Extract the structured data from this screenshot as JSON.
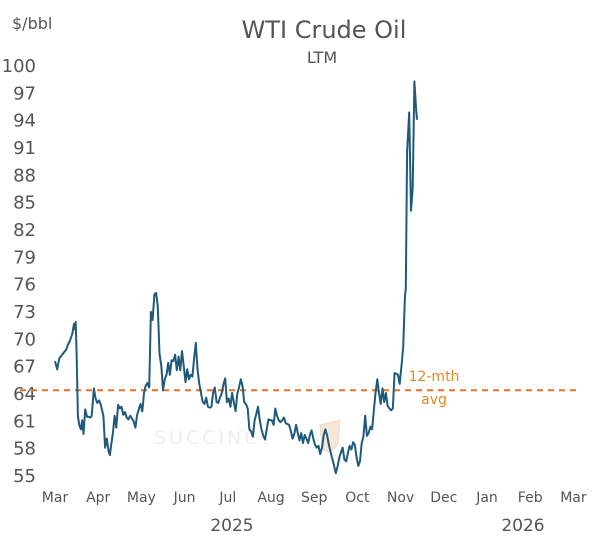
{
  "chart_data": {
    "type": "line",
    "title": "WTI Crude Oil",
    "subtitle": "LTM",
    "ylabel": "$/bbl",
    "ylim": [
      55,
      100
    ],
    "y_ticks": [
      55,
      58,
      61,
      64,
      67,
      70,
      73,
      76,
      79,
      82,
      85,
      88,
      91,
      94,
      97,
      100
    ],
    "x_ticks": [
      "Mar",
      "Apr",
      "May",
      "Jun",
      "Jul",
      "Aug",
      "Sep",
      "Oct",
      "Nov",
      "Dec",
      "Jan",
      "Feb",
      "Mar"
    ],
    "years": [
      "2025",
      "2026"
    ],
    "line_color": "#1f5a7a",
    "grid": false,
    "average": {
      "value": 64.3,
      "label": [
        "12-mth",
        "avg"
      ],
      "color": "#e5702a",
      "label_color": "#e08a1e"
    },
    "watermark": "SUCCINCT",
    "series": [
      {
        "points": [
          [
            0.0,
            67.5
          ],
          [
            0.05,
            66.6
          ],
          [
            0.1,
            67.8
          ],
          [
            0.18,
            68.3
          ],
          [
            0.25,
            68.7
          ],
          [
            0.3,
            69.3
          ],
          [
            0.35,
            69.8
          ],
          [
            0.4,
            70.5
          ],
          [
            0.44,
            71.6
          ],
          [
            0.46,
            71.0
          ],
          [
            0.48,
            71.8
          ],
          [
            0.5,
            68.3
          ],
          [
            0.53,
            61.5
          ],
          [
            0.56,
            60.5
          ],
          [
            0.6,
            60.0
          ],
          [
            0.63,
            61.0
          ],
          [
            0.66,
            59.5
          ],
          [
            0.7,
            62.2
          ],
          [
            0.74,
            61.4
          ],
          [
            0.78,
            61.4
          ],
          [
            0.82,
            61.3
          ],
          [
            0.85,
            61.5
          ],
          [
            0.9,
            64.5
          ],
          [
            0.94,
            63.4
          ],
          [
            0.98,
            62.9
          ],
          [
            1.02,
            63.2
          ],
          [
            1.06,
            62.7
          ],
          [
            1.12,
            61.5
          ],
          [
            1.16,
            58.0
          ],
          [
            1.2,
            59.0
          ],
          [
            1.24,
            57.6
          ],
          [
            1.27,
            57.2
          ],
          [
            1.3,
            58.3
          ],
          [
            1.34,
            59.6
          ],
          [
            1.38,
            61.5
          ],
          [
            1.42,
            60.2
          ],
          [
            1.46,
            62.7
          ],
          [
            1.5,
            62.3
          ],
          [
            1.54,
            62.5
          ],
          [
            1.58,
            61.6
          ],
          [
            1.62,
            61.9
          ],
          [
            1.66,
            61.3
          ],
          [
            1.7,
            61.1
          ],
          [
            1.74,
            61.5
          ],
          [
            1.78,
            61.2
          ],
          [
            1.82,
            60.9
          ],
          [
            1.86,
            60.2
          ],
          [
            1.9,
            61.6
          ],
          [
            1.94,
            62.2
          ],
          [
            1.98,
            62.8
          ],
          [
            2.02,
            62.0
          ],
          [
            2.06,
            64.0
          ],
          [
            2.1,
            64.8
          ],
          [
            2.14,
            65.1
          ],
          [
            2.18,
            64.6
          ],
          [
            2.22,
            72.9
          ],
          [
            2.26,
            72.0
          ],
          [
            2.3,
            74.8
          ],
          [
            2.34,
            75.0
          ],
          [
            2.38,
            73.5
          ],
          [
            2.42,
            68.3
          ],
          [
            2.46,
            67.0
          ],
          [
            2.5,
            64.3
          ],
          [
            2.54,
            65.5
          ],
          [
            2.58,
            66.0
          ],
          [
            2.62,
            67.3
          ],
          [
            2.66,
            66.0
          ],
          [
            2.7,
            67.6
          ],
          [
            2.74,
            67.5
          ],
          [
            2.78,
            68.2
          ],
          [
            2.82,
            66.5
          ],
          [
            2.86,
            68.0
          ],
          [
            2.9,
            66.5
          ],
          [
            2.94,
            68.6
          ],
          [
            2.98,
            67.0
          ],
          [
            3.02,
            65.2
          ],
          [
            3.06,
            66.6
          ],
          [
            3.1,
            65.5
          ],
          [
            3.14,
            66.0
          ],
          [
            3.18,
            65.8
          ],
          [
            3.22,
            67.8
          ],
          [
            3.26,
            69.5
          ],
          [
            3.3,
            66.5
          ],
          [
            3.34,
            65.0
          ],
          [
            3.38,
            64.0
          ],
          [
            3.42,
            63.0
          ],
          [
            3.46,
            62.8
          ],
          [
            3.5,
            63.5
          ],
          [
            3.54,
            62.5
          ],
          [
            3.58,
            62.4
          ],
          [
            3.62,
            62.5
          ],
          [
            3.66,
            64.0
          ],
          [
            3.7,
            64.6
          ],
          [
            3.74,
            63.0
          ],
          [
            3.78,
            62.9
          ],
          [
            3.82,
            63.5
          ],
          [
            3.86,
            64.0
          ],
          [
            3.9,
            65.0
          ],
          [
            3.94,
            65.6
          ],
          [
            3.98,
            63.0
          ],
          [
            4.02,
            63.4
          ],
          [
            4.06,
            62.5
          ],
          [
            4.1,
            64.0
          ],
          [
            4.14,
            63.0
          ],
          [
            4.18,
            62.0
          ],
          [
            4.22,
            63.9
          ],
          [
            4.26,
            64.6
          ],
          [
            4.3,
            65.5
          ],
          [
            4.34,
            64.8
          ],
          [
            4.38,
            63.0
          ],
          [
            4.42,
            62.8
          ],
          [
            4.46,
            62.3
          ],
          [
            4.5,
            60.0
          ],
          [
            4.54,
            59.8
          ],
          [
            4.58,
            59.2
          ],
          [
            4.62,
            61.0
          ],
          [
            4.66,
            61.7
          ],
          [
            4.7,
            62.5
          ],
          [
            4.74,
            61.0
          ],
          [
            4.78,
            60.0
          ],
          [
            4.82,
            59.3
          ],
          [
            4.86,
            58.9
          ],
          [
            4.9,
            60.0
          ],
          [
            4.94,
            61.1
          ],
          [
            4.98,
            61.0
          ],
          [
            5.02,
            61.0
          ],
          [
            5.06,
            60.5
          ],
          [
            5.1,
            62.3
          ],
          [
            5.14,
            61.5
          ],
          [
            5.18,
            61.0
          ],
          [
            5.22,
            60.8
          ],
          [
            5.26,
            61.0
          ],
          [
            5.3,
            61.3
          ],
          [
            5.34,
            60.7
          ],
          [
            5.38,
            60.6
          ],
          [
            5.42,
            60.5
          ],
          [
            5.46,
            59.8
          ],
          [
            5.5,
            59.0
          ],
          [
            5.54,
            59.5
          ],
          [
            5.58,
            60.5
          ],
          [
            5.62,
            59.6
          ],
          [
            5.66,
            58.8
          ],
          [
            5.7,
            59.6
          ],
          [
            5.74,
            58.5
          ],
          [
            5.78,
            59.4
          ],
          [
            5.82,
            59.0
          ],
          [
            5.86,
            58.5
          ],
          [
            5.9,
            59.4
          ],
          [
            5.94,
            59.9
          ],
          [
            5.98,
            59.0
          ],
          [
            6.02,
            58.3
          ],
          [
            6.06,
            58.0
          ],
          [
            6.1,
            58.2
          ],
          [
            6.14,
            57.3
          ],
          [
            6.18,
            58.0
          ],
          [
            6.22,
            59.4
          ],
          [
            6.26,
            60.0
          ],
          [
            6.3,
            59.3
          ],
          [
            6.34,
            58.3
          ],
          [
            6.38,
            57.5
          ],
          [
            6.42,
            56.8
          ],
          [
            6.46,
            56.0
          ],
          [
            6.5,
            55.2
          ],
          [
            6.54,
            55.9
          ],
          [
            6.58,
            56.9
          ],
          [
            6.62,
            57.5
          ],
          [
            6.66,
            58.0
          ],
          [
            6.7,
            56.7
          ],
          [
            6.74,
            56.5
          ],
          [
            6.78,
            57.4
          ],
          [
            6.82,
            58.2
          ],
          [
            6.86,
            57.8
          ],
          [
            6.9,
            58.6
          ],
          [
            6.94,
            58.3
          ],
          [
            6.98,
            57.0
          ],
          [
            7.02,
            56.0
          ],
          [
            7.06,
            56.5
          ],
          [
            7.1,
            58.5
          ],
          [
            7.14,
            59.2
          ],
          [
            7.18,
            61.5
          ],
          [
            7.22,
            59.3
          ],
          [
            7.26,
            59.6
          ],
          [
            7.3,
            60.3
          ],
          [
            7.34,
            60.0
          ],
          [
            7.38,
            62.0
          ],
          [
            7.42,
            64.0
          ],
          [
            7.46,
            65.5
          ],
          [
            7.5,
            64.0
          ],
          [
            7.54,
            62.8
          ],
          [
            7.58,
            64.5
          ],
          [
            7.62,
            63.0
          ],
          [
            7.66,
            64.0
          ],
          [
            7.7,
            62.6
          ],
          [
            7.74,
            62.3
          ],
          [
            7.78,
            62.1
          ],
          [
            7.82,
            62.3
          ],
          [
            7.86,
            66.2
          ],
          [
            7.9,
            66.1
          ],
          [
            7.94,
            66.0
          ],
          [
            7.98,
            65.0
          ],
          [
            8.02,
            67.0
          ],
          [
            8.06,
            69.0
          ],
          [
            8.1,
            74.5
          ],
          [
            8.12,
            75.5
          ],
          [
            8.15,
            90.5
          ],
          [
            8.2,
            94.8
          ],
          [
            8.24,
            84.0
          ],
          [
            8.28,
            86.5
          ],
          [
            8.32,
            98.2
          ],
          [
            8.36,
            95.0
          ],
          [
            8.38,
            94.0
          ]
        ]
      }
    ]
  }
}
